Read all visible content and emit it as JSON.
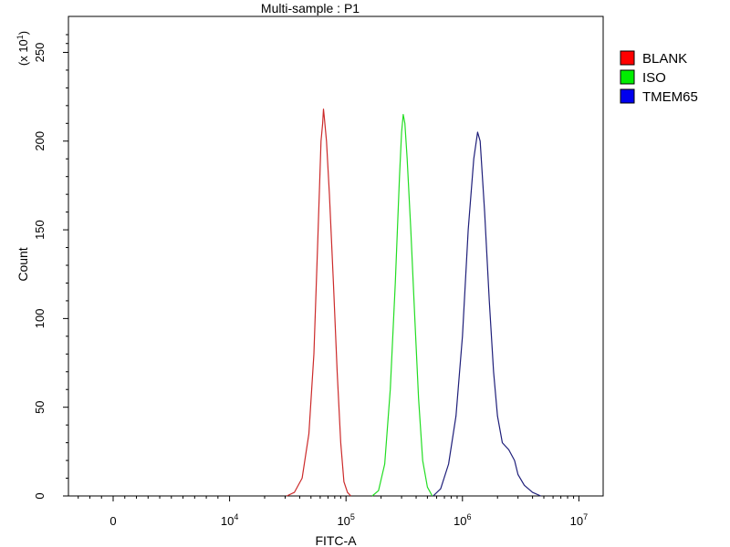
{
  "chart_data": {
    "type": "line",
    "title": "Multi-sample : P1",
    "xlabel": "FITC-A",
    "ylabel": "Count",
    "y_multiplier_label": "(x 10",
    "y_multiplier_exp": "1",
    "y_multiplier_close": ")",
    "x_scale": "biexponential",
    "x_ticks": [
      {
        "value": 0,
        "base": "0",
        "exp": ""
      },
      {
        "value": 10000,
        "base": "10",
        "exp": "4"
      },
      {
        "value": 100000,
        "base": "10",
        "exp": "5"
      },
      {
        "value": 1000000,
        "base": "10",
        "exp": "6"
      },
      {
        "value": 10000000,
        "base": "10",
        "exp": "7"
      }
    ],
    "ylim": [
      0,
      260
    ],
    "y_ticks": [
      0,
      50,
      100,
      150,
      200,
      250
    ],
    "grid": false,
    "legend_position": "right",
    "series": [
      {
        "name": "BLANK",
        "color": "#cc2a2a",
        "swatch": "#ff0000",
        "points": [
          [
            31000,
            0
          ],
          [
            36000,
            2
          ],
          [
            42000,
            10
          ],
          [
            48000,
            35
          ],
          [
            53000,
            80
          ],
          [
            57000,
            140
          ],
          [
            61000,
            200
          ],
          [
            63000,
            210
          ],
          [
            64000,
            218
          ],
          [
            65000,
            214
          ],
          [
            68000,
            200
          ],
          [
            72000,
            170
          ],
          [
            78000,
            120
          ],
          [
            84000,
            70
          ],
          [
            90000,
            30
          ],
          [
            96000,
            8
          ],
          [
            103000,
            2
          ],
          [
            110000,
            0
          ]
        ]
      },
      {
        "name": "ISO",
        "color": "#22dd22",
        "swatch": "#00ee00",
        "points": [
          [
            168000,
            0
          ],
          [
            190000,
            3
          ],
          [
            215000,
            18
          ],
          [
            240000,
            60
          ],
          [
            265000,
            120
          ],
          [
            288000,
            180
          ],
          [
            300000,
            205
          ],
          [
            310000,
            215
          ],
          [
            320000,
            210
          ],
          [
            335000,
            190
          ],
          [
            360000,
            150
          ],
          [
            390000,
            100
          ],
          [
            420000,
            55
          ],
          [
            455000,
            20
          ],
          [
            500000,
            5
          ],
          [
            550000,
            0
          ]
        ]
      },
      {
        "name": "TMEM65",
        "color": "#1f1f7a",
        "swatch": "#0000ee",
        "points": [
          [
            560000,
            0
          ],
          [
            650000,
            4
          ],
          [
            760000,
            18
          ],
          [
            880000,
            45
          ],
          [
            1000000,
            90
          ],
          [
            1120000,
            150
          ],
          [
            1250000,
            190
          ],
          [
            1350000,
            205
          ],
          [
            1420000,
            200
          ],
          [
            1550000,
            160
          ],
          [
            1700000,
            110
          ],
          [
            1850000,
            70
          ],
          [
            2000000,
            45
          ],
          [
            2200000,
            30
          ],
          [
            2500000,
            26
          ],
          [
            2800000,
            20
          ],
          [
            3000000,
            12
          ],
          [
            3400000,
            6
          ],
          [
            4000000,
            2
          ],
          [
            4700000,
            0
          ]
        ]
      }
    ]
  }
}
